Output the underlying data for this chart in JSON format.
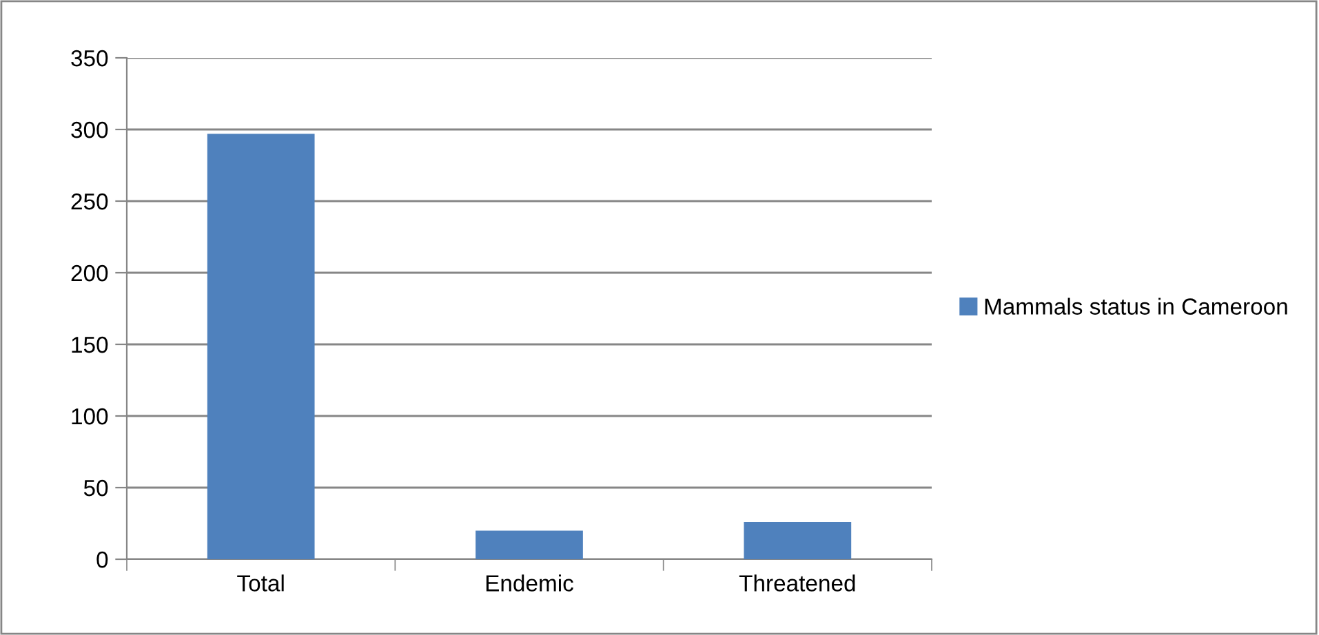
{
  "chart_data": {
    "type": "bar",
    "categories": [
      "Total",
      "Endemic",
      "Threatened"
    ],
    "series": [
      {
        "name": "Mammals status in Cameroon",
        "color": "#4f81bd",
        "values": [
          297,
          20,
          26
        ]
      }
    ],
    "ylim": [
      0,
      350
    ],
    "yticks": [
      0,
      50,
      100,
      150,
      200,
      250,
      300,
      350
    ],
    "grid": "y",
    "legend": "right"
  }
}
